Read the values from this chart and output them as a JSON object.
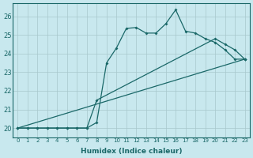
{
  "xlabel": "Humidex (Indice chaleur)",
  "bg_color": "#c8e8ee",
  "grid_color": "#a8c8cc",
  "line_color": "#1a6868",
  "xlim": [
    -0.5,
    23.5
  ],
  "ylim": [
    19.5,
    26.7
  ],
  "yticks": [
    20,
    21,
    22,
    23,
    24,
    25,
    26
  ],
  "xticks": [
    0,
    1,
    2,
    3,
    4,
    5,
    6,
    7,
    8,
    9,
    10,
    11,
    12,
    13,
    14,
    15,
    16,
    17,
    18,
    19,
    20,
    21,
    22,
    23
  ],
  "line1_x": [
    0,
    23
  ],
  "line1_y": [
    20.0,
    23.7
  ],
  "line2_x": [
    0,
    1,
    2,
    3,
    4,
    5,
    6,
    7,
    8,
    20,
    21,
    22,
    23
  ],
  "line2_y": [
    20,
    20,
    20,
    20,
    20,
    20,
    20,
    20,
    21.5,
    24.8,
    24.5,
    24.2,
    23.7
  ],
  "line3_x": [
    0,
    1,
    2,
    3,
    4,
    5,
    6,
    7,
    8,
    9,
    10,
    11,
    12,
    13,
    14,
    15,
    16,
    17,
    18,
    19,
    20,
    21,
    22,
    23
  ],
  "line3_y": [
    20,
    20,
    20,
    20,
    20,
    20,
    20,
    20,
    20.3,
    23.5,
    24.3,
    25.35,
    25.4,
    25.1,
    25.1,
    25.6,
    26.35,
    25.2,
    25.1,
    24.8,
    24.6,
    24.2,
    23.7,
    23.7
  ]
}
